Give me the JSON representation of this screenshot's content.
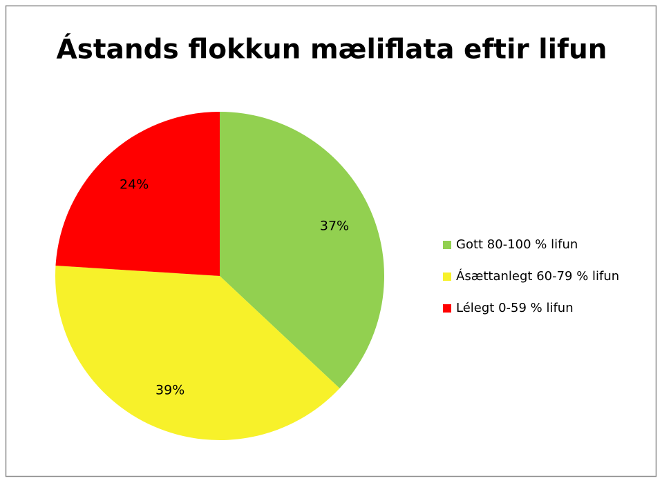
{
  "chart_data": {
    "type": "pie",
    "title": "Ástands flokkun mæliflata eftir lifun",
    "categories": [
      "Gott 80-100 % lifun",
      "Ásættanlegt 60-79 % lifun",
      "Lélegt 0-59 % lifun"
    ],
    "values": [
      37,
      39,
      24
    ],
    "value_labels": [
      "37%",
      "39%",
      "24%"
    ],
    "colors": [
      "#92d050",
      "#f7f12a",
      "#ff0000"
    ],
    "legend": "right"
  }
}
